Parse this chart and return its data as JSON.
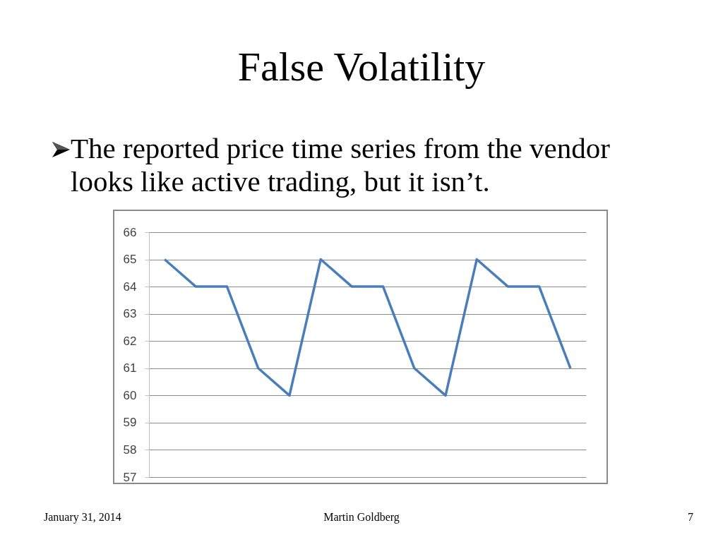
{
  "chart_data": {
    "type": "line",
    "title": "False Volatility",
    "subtitle": "The reported price time series from the vendor looks like active trading, but it isn’t.",
    "categories": [
      null,
      null,
      null,
      null,
      null,
      null,
      null,
      null,
      null,
      null,
      null,
      null,
      null,
      null
    ],
    "series": [
      {
        "color": "#4a7ebb",
        "values": [
          65,
          64,
          64,
          61,
          60,
          65,
          64,
          64,
          61,
          60,
          65,
          64,
          64,
          61
        ]
      }
    ],
    "ylim": [
      57,
      66
    ],
    "yticks": [
      57,
      58,
      59,
      60,
      61,
      62,
      63,
      64,
      65,
      66
    ],
    "grid": "y",
    "tick_labels": "y",
    "annotations": [
      "January 31, 2014",
      "Martin Goldberg",
      "7"
    ]
  }
}
